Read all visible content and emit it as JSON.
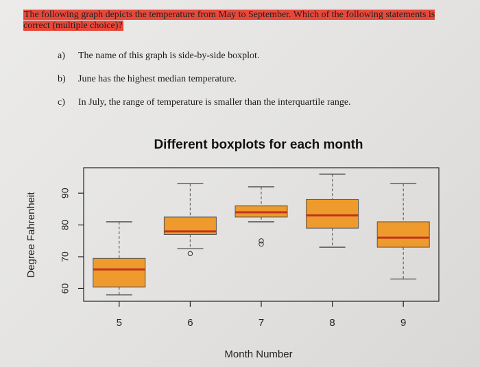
{
  "question": {
    "text": "The following graph depicts the temperature from May to September. Which of the following statements is correct (multiple choice)?"
  },
  "options": [
    {
      "letter": "a)",
      "text": "The name of this graph is side-by-side boxplot."
    },
    {
      "letter": "b)",
      "text": "June has the highest median temperature."
    },
    {
      "letter": "c)",
      "text": "In July, the range of temperature is smaller than the interquartile range."
    }
  ],
  "colors": {
    "box_fill": "#ee9a2c",
    "median": "#c0341c",
    "whisker": "#666666",
    "highlight": "#e8483a"
  },
  "chart_data": {
    "type": "boxplot",
    "title": "Different boxplots for each month",
    "xlabel": "Month Number",
    "ylabel": "Degree Fahrenheit",
    "categories": [
      "5",
      "6",
      "7",
      "8",
      "9"
    ],
    "y_ticks": [
      "60",
      "70",
      "80",
      "90"
    ],
    "ylim": [
      56,
      98
    ],
    "grid": false,
    "boxes": [
      {
        "month": "5",
        "min": 58,
        "q1": 60.5,
        "median": 66,
        "q3": 69.5,
        "max": 81,
        "outliers": []
      },
      {
        "month": "6",
        "min": 72.5,
        "q1": 77,
        "median": 78,
        "q3": 82.5,
        "max": 93,
        "outliers": [
          71
        ]
      },
      {
        "month": "7",
        "min": 81,
        "q1": 82.5,
        "median": 84,
        "q3": 86,
        "max": 92,
        "outliers": [
          75,
          74
        ]
      },
      {
        "month": "8",
        "min": 73,
        "q1": 79,
        "median": 83,
        "q3": 88,
        "max": 96,
        "outliers": []
      },
      {
        "month": "9",
        "min": 63,
        "q1": 73,
        "median": 76,
        "q3": 81,
        "max": 93,
        "outliers": []
      }
    ]
  }
}
